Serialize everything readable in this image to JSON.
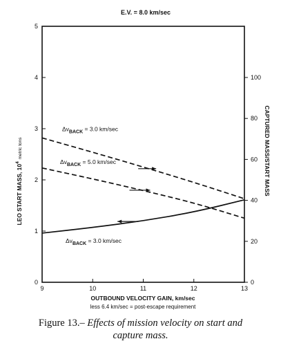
{
  "chart_data": {
    "type": "line",
    "title": "E.V. = 8.0 km/sec",
    "xlabel": "OUTBOUND VELOCITY GAIN, km/sec",
    "xlabel_note": "less 6.4 km/sec = post-escape requirement",
    "ylabel_left": "LEO START MASS, 10",
    "ylabel_left_exp": "4",
    "ylabel_left_units": "metric tons",
    "ylabel_right": "CAPTURED MASS/START MASS",
    "xlim": [
      9,
      13
    ],
    "ylim_left": [
      0,
      5
    ],
    "ylim_right": [
      0,
      125
    ],
    "x_ticks": [
      9,
      10,
      11,
      12,
      13
    ],
    "y_left_ticks": [
      0,
      1,
      2,
      3,
      4,
      5
    ],
    "y_right_ticks": [
      0,
      20,
      40,
      60,
      80,
      100
    ],
    "grid": false,
    "series": [
      {
        "name": "Δv_BACK = 3.0 km/sec",
        "axis": "right",
        "style": "dashed",
        "x": [
          9,
          10,
          11,
          12,
          13
        ],
        "y": [
          70.5,
          63.5,
          56.3,
          48.8,
          40.8
        ]
      },
      {
        "name": "Δv_BACK = 5.0 km/sec",
        "axis": "right",
        "style": "dashed",
        "x": [
          9,
          10,
          11,
          12,
          13
        ],
        "y": [
          55.8,
          50.5,
          44.8,
          38.8,
          31.3
        ]
      },
      {
        "name": "Δv_BACK = 3.0 km/sec",
        "axis": "left",
        "style": "solid",
        "x": [
          9,
          10,
          11,
          12,
          13
        ],
        "y": [
          0.96,
          1.07,
          1.2,
          1.37,
          1.61
        ]
      }
    ],
    "annotations": [
      {
        "label_prefix": "Δv",
        "label_sub": "BACK",
        "label_suffix": " = 3.0 km/sec",
        "series": 0
      },
      {
        "label_prefix": "Δv",
        "label_sub": "BACK",
        "label_suffix": " = 5.0 km/sec",
        "series": 1
      },
      {
        "label_prefix": "Δv",
        "label_sub": "BACK",
        "label_suffix": " = 3.0 km/sec",
        "series": 2
      }
    ]
  },
  "caption": {
    "prefix": "Figure 13.– ",
    "text_line1": "Effects of mission velocity on start and",
    "text_line2": "capture mass."
  }
}
